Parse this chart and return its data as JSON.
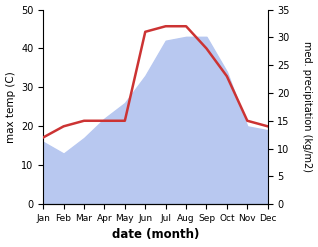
{
  "months": [
    "Jan",
    "Feb",
    "Mar",
    "Apr",
    "May",
    "Jun",
    "Jul",
    "Aug",
    "Sep",
    "Oct",
    "Nov",
    "Dec"
  ],
  "max_temp": [
    16,
    13,
    17,
    22,
    26,
    33,
    42,
    43,
    43,
    34,
    20,
    19
  ],
  "precipitation": [
    12,
    14,
    15,
    15,
    15,
    31,
    32,
    32,
    28,
    23,
    15,
    14
  ],
  "temp_color": "#b8c8f0",
  "precip_color": "#cc3333",
  "temp_ylim": [
    0,
    50
  ],
  "precip_ylim": [
    0,
    35
  ],
  "temp_yticks": [
    0,
    10,
    20,
    30,
    40,
    50
  ],
  "precip_yticks": [
    0,
    5,
    10,
    15,
    20,
    25,
    30,
    35
  ],
  "xlabel": "date (month)",
  "ylabel_left": "max temp (C)",
  "ylabel_right": "med. precipitation (kg/m2)"
}
